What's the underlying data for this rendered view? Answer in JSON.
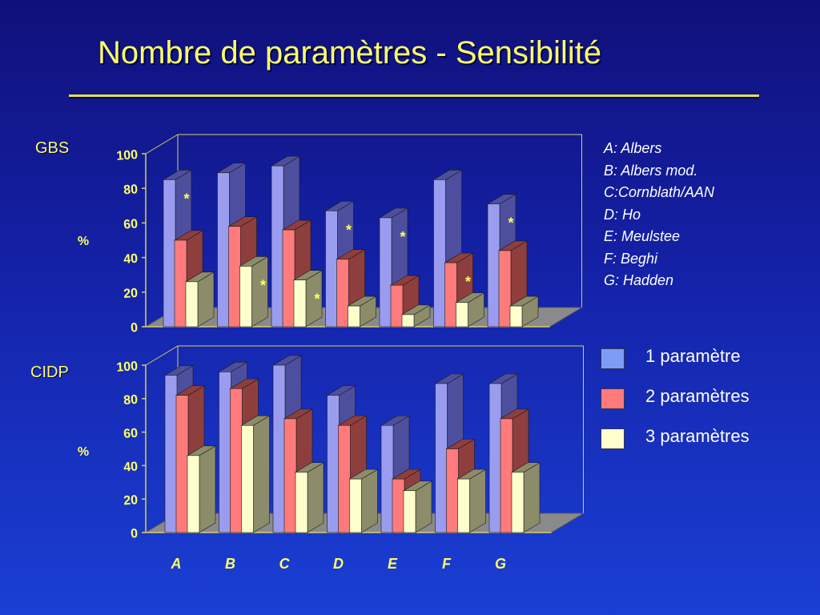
{
  "slide": {
    "title": "Nombre de paramètres - Sensibilité"
  },
  "key": {
    "items": [
      "A: Albers",
      "B: Albers mod.",
      "C:Cornblath/AAN",
      "D: Ho",
      "E: Meulstee",
      "F: Beghi",
      "G: Hadden"
    ]
  },
  "legend": {
    "items": [
      {
        "label": "1 paramètre",
        "color": "#7f9cf5"
      },
      {
        "label": "2 paramètres",
        "color": "#ff7a7a"
      },
      {
        "label": "3 paramètres",
        "color": "#ffffcc"
      }
    ]
  },
  "colors": {
    "series_front": [
      "#9a9cf0",
      "#ff7b7b",
      "#ffffcc"
    ],
    "series_side": [
      "#4d4f9e",
      "#8f3e3e",
      "#8c8c6a"
    ],
    "axis_text": "#ffff66",
    "floor": "#8a8a8a",
    "annotation": "#ffff66"
  },
  "chart_data": [
    {
      "type": "bar",
      "name": "GBS",
      "categories": [
        "A",
        "B",
        "C",
        "D",
        "E",
        "F",
        "G"
      ],
      "series": [
        {
          "name": "1 paramètre",
          "values": [
            85,
            89,
            93,
            67,
            63,
            85,
            71
          ]
        },
        {
          "name": "2 paramètres",
          "values": [
            50,
            58,
            56,
            39,
            24,
            37,
            44
          ]
        },
        {
          "name": "3 paramètres",
          "values": [
            26,
            35,
            27,
            12,
            7,
            14,
            12
          ]
        }
      ],
      "annotations": [
        {
          "category": "A",
          "series": 0,
          "text": "*"
        },
        {
          "category": "B",
          "series": 2,
          "text": "*"
        },
        {
          "category": "C",
          "series": 2,
          "text": "*"
        },
        {
          "category": "D",
          "series": 0,
          "text": "*"
        },
        {
          "category": "E",
          "series": 0,
          "text": "*"
        },
        {
          "category": "F",
          "series": 1,
          "text": "*"
        },
        {
          "category": "G",
          "series": 0,
          "text": "*"
        }
      ],
      "ylabel": "%",
      "ylim": [
        0,
        100
      ],
      "yticks": [
        "0",
        "20",
        "40",
        "60",
        "80",
        "100"
      ],
      "show_category_labels": false
    },
    {
      "type": "bar",
      "name": "CIDP",
      "categories": [
        "A",
        "B",
        "C",
        "D",
        "E",
        "F",
        "G"
      ],
      "series": [
        {
          "name": "1 paramètre",
          "values": [
            94,
            96,
            100,
            82,
            64,
            89,
            89
          ]
        },
        {
          "name": "2 paramètres",
          "values": [
            82,
            86,
            68,
            64,
            32,
            50,
            68
          ]
        },
        {
          "name": "3 paramètres",
          "values": [
            46,
            64,
            36,
            32,
            25,
            32,
            36
          ]
        }
      ],
      "annotations": [],
      "ylabel": "%",
      "ylim": [
        0,
        100
      ],
      "yticks": [
        "0",
        "20",
        "40",
        "60",
        "80",
        "100"
      ],
      "show_category_labels": true
    }
  ]
}
